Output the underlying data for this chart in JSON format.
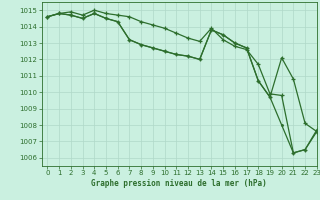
{
  "xlabel": "Graphe pression niveau de la mer (hPa)",
  "background_color": "#caf0e0",
  "grid_color": "#b0d8c8",
  "line_color": "#2d6e2d",
  "ylim": [
    1005.5,
    1015.5
  ],
  "xlim": [
    -0.5,
    23
  ],
  "yticks": [
    1006,
    1007,
    1008,
    1009,
    1010,
    1011,
    1012,
    1013,
    1014,
    1015
  ],
  "xticks": [
    0,
    1,
    2,
    3,
    4,
    5,
    6,
    7,
    8,
    9,
    10,
    11,
    12,
    13,
    14,
    15,
    16,
    17,
    18,
    19,
    20,
    21,
    22,
    23
  ],
  "line1_x": [
    0,
    1,
    2,
    3,
    4,
    5,
    6,
    7,
    8,
    9,
    10,
    11,
    12,
    13,
    14,
    15,
    16,
    17,
    18,
    19,
    20,
    21,
    22,
    23
  ],
  "line1_y": [
    1014.6,
    1014.8,
    1014.9,
    1014.7,
    1015.0,
    1014.8,
    1014.7,
    1014.6,
    1014.3,
    1014.1,
    1013.9,
    1013.6,
    1013.3,
    1013.1,
    1013.9,
    1013.2,
    1012.8,
    1012.6,
    1011.7,
    1009.9,
    1009.8,
    1006.3,
    1006.5,
    1007.7
  ],
  "line2_x": [
    0,
    1,
    2,
    3,
    4,
    5,
    6,
    7,
    8,
    9,
    10,
    11,
    12,
    13,
    14,
    15,
    16,
    17,
    18,
    19,
    20,
    21,
    22,
    23
  ],
  "line2_y": [
    1014.6,
    1014.8,
    1014.7,
    1014.5,
    1014.8,
    1014.5,
    1014.3,
    1013.2,
    1012.9,
    1012.7,
    1012.5,
    1012.3,
    1012.2,
    1012.0,
    1013.8,
    1013.5,
    1013.0,
    1012.7,
    1010.7,
    1009.7,
    1012.1,
    1010.8,
    1008.1,
    1007.6
  ],
  "line3_x": [
    0,
    1,
    2,
    3,
    4,
    5,
    6,
    7,
    8,
    9,
    10,
    11,
    12,
    13,
    14,
    15,
    16,
    17,
    18,
    19,
    20,
    21,
    22,
    23
  ],
  "line3_y": [
    1014.6,
    1014.8,
    1014.7,
    1014.5,
    1014.8,
    1014.5,
    1014.3,
    1013.2,
    1012.9,
    1012.7,
    1012.5,
    1012.3,
    1012.2,
    1012.0,
    1013.8,
    1013.5,
    1013.0,
    1012.7,
    1010.7,
    1009.7,
    1008.0,
    1006.3,
    1006.5,
    1007.6
  ]
}
